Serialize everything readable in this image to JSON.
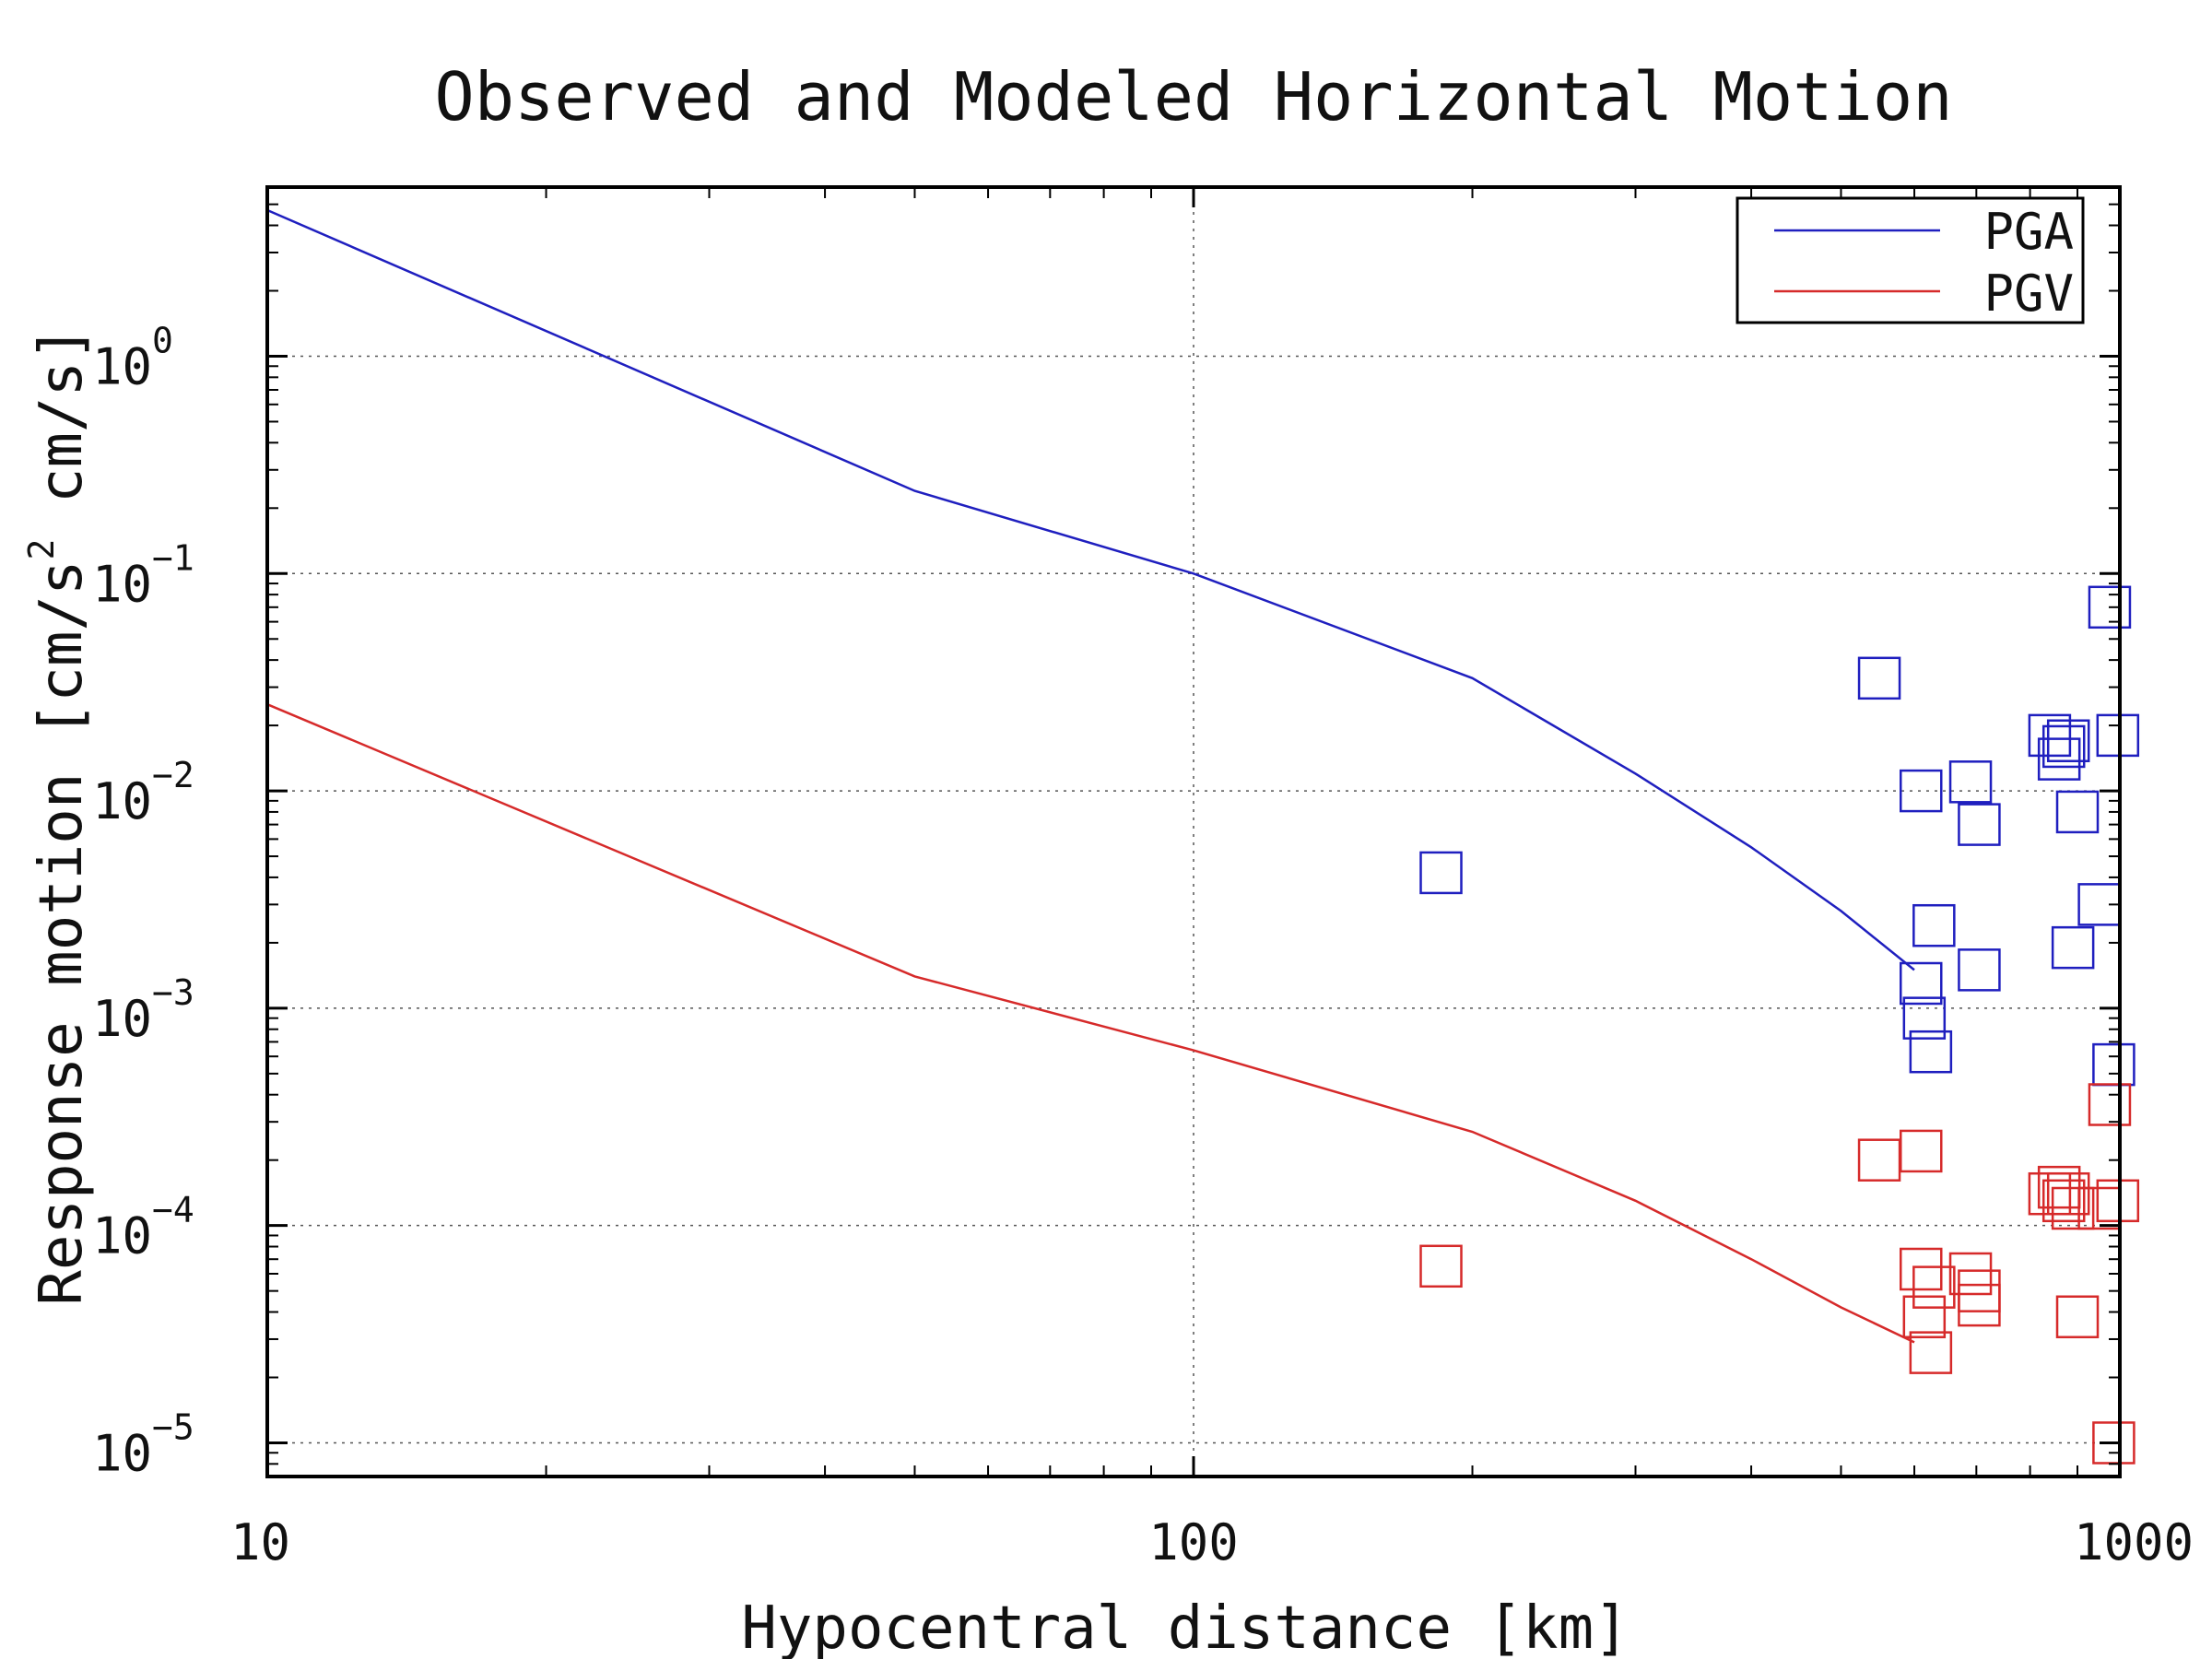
{
  "chart_data": {
    "type": "line",
    "title": "Observed and Modeled Horizontal Motion",
    "xlabel": "Hypocentral distance [km]",
    "ylabel_parts": {
      "main": "Response motion [cm/s",
      "sup": "2",
      "tail": " cm/s]"
    },
    "x_scale": "log",
    "y_scale": "log",
    "xlim": [
      10,
      1000
    ],
    "ylim": [
      7e-06,
      6
    ],
    "x_ticks": [
      {
        "value": 10,
        "label": "10"
      },
      {
        "value": 100,
        "label": "100"
      },
      {
        "value": 1000,
        "label": "1000"
      }
    ],
    "y_ticks": [
      {
        "value": 1,
        "base": "10",
        "exp": "0"
      },
      {
        "value": 0.1,
        "base": "10",
        "exp": "−1"
      },
      {
        "value": 0.01,
        "base": "10",
        "exp": "−2"
      },
      {
        "value": 0.001,
        "base": "10",
        "exp": "−3"
      },
      {
        "value": 0.0001,
        "base": "10",
        "exp": "−4"
      },
      {
        "value": 1e-05,
        "base": "10",
        "exp": "−5"
      }
    ],
    "grid": true,
    "legend_position": "top-right",
    "series": [
      {
        "name": "PGA",
        "color": "#1f1fbf",
        "line": [
          [
            10,
            4.7
          ],
          [
            50,
            0.24
          ],
          [
            100,
            0.1
          ],
          [
            200,
            0.033
          ],
          [
            300,
            0.012
          ],
          [
            400,
            0.0055
          ],
          [
            500,
            0.0028
          ],
          [
            600,
            0.0015
          ]
        ],
        "observed": [
          [
            185,
            0.0042
          ],
          [
            550,
            0.033
          ],
          [
            610,
            0.01
          ],
          [
            610,
            0.0013
          ],
          [
            615,
            0.0009
          ],
          [
            625,
            0.00063
          ],
          [
            630,
            0.0024
          ],
          [
            690,
            0.011
          ],
          [
            705,
            0.007
          ],
          [
            705,
            0.0015
          ],
          [
            840,
            0.018
          ],
          [
            860,
            0.014
          ],
          [
            870,
            0.016
          ],
          [
            880,
            0.017
          ],
          [
            890,
            0.0019
          ],
          [
            900,
            0.008
          ],
          [
            950,
            0.003
          ],
          [
            975,
            0.07
          ],
          [
            985,
            0.00055
          ],
          [
            995,
            0.018
          ]
        ]
      },
      {
        "name": "PGV",
        "color": "#d62a2a",
        "line": [
          [
            10,
            0.025
          ],
          [
            50,
            0.0014
          ],
          [
            100,
            0.00064
          ],
          [
            200,
            0.00027
          ],
          [
            300,
            0.00013
          ],
          [
            400,
            7e-05
          ],
          [
            500,
            4.2e-05
          ],
          [
            600,
            2.9e-05
          ]
        ],
        "observed": [
          [
            185,
            6.5e-05
          ],
          [
            550,
            0.0002
          ],
          [
            610,
            0.00022
          ],
          [
            610,
            6.3e-05
          ],
          [
            615,
            3.8e-05
          ],
          [
            625,
            2.6e-05
          ],
          [
            630,
            5.2e-05
          ],
          [
            690,
            6e-05
          ],
          [
            705,
            5e-05
          ],
          [
            705,
            4.3e-05
          ],
          [
            840,
            0.00014
          ],
          [
            860,
            0.00015
          ],
          [
            870,
            0.00013
          ],
          [
            880,
            0.00014
          ],
          [
            890,
            0.00012
          ],
          [
            900,
            3.8e-05
          ],
          [
            950,
            0.00012
          ],
          [
            975,
            0.00036
          ],
          [
            985,
            1e-05
          ],
          [
            995,
            0.00013
          ]
        ]
      }
    ]
  }
}
